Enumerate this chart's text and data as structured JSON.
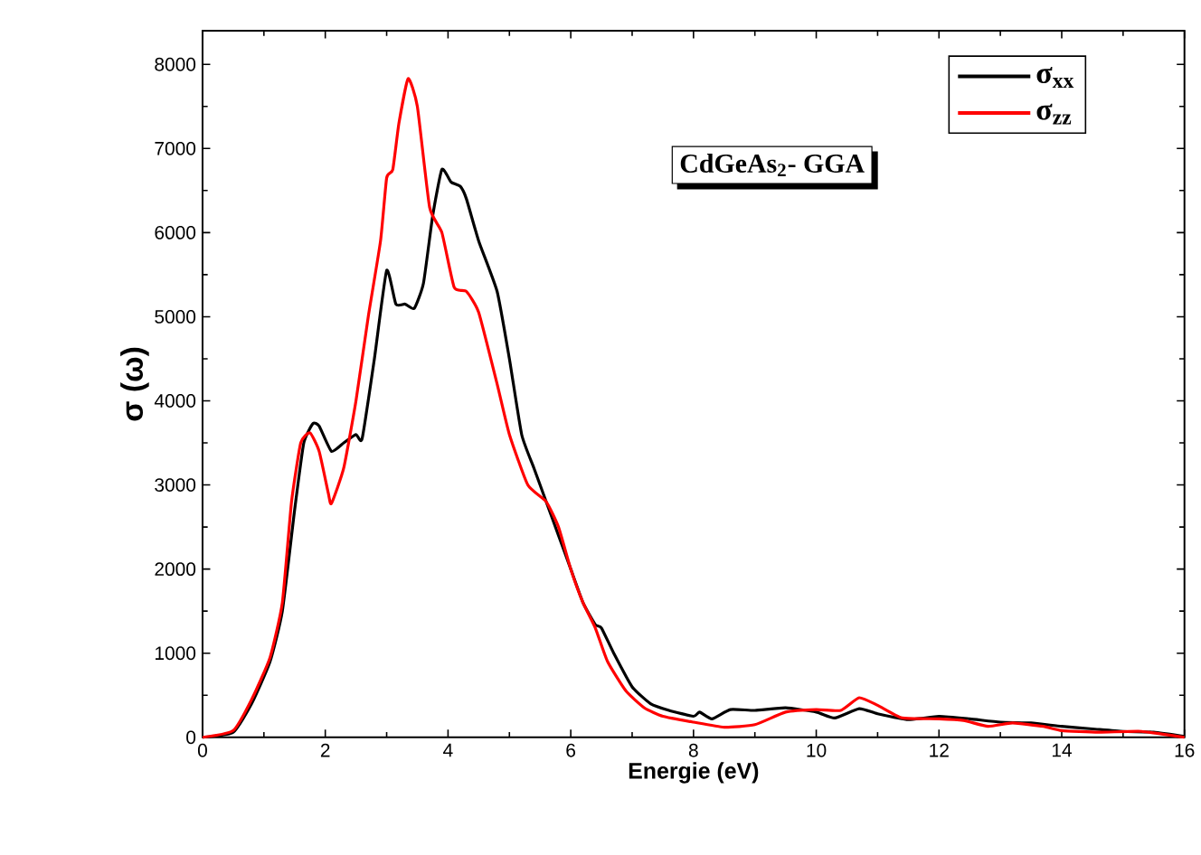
{
  "chart_data": {
    "type": "line",
    "xlabel": "Energie (eV)",
    "ylabel": "σ (ω)",
    "xlim": [
      0,
      16
    ],
    "ylim": [
      0,
      8400
    ],
    "xticks": [
      0,
      2,
      4,
      6,
      8,
      10,
      12,
      14,
      16
    ],
    "yticks": [
      0,
      1000,
      2000,
      3000,
      4000,
      5000,
      6000,
      7000,
      8000
    ],
    "grid": false,
    "legend": "top right",
    "marker": "none",
    "line_style": "solid",
    "annotations": [
      "CdGeAs$_{2}$- GGA"
    ],
    "series": [
      {
        "name": "σ$_{xx}$",
        "color": "#000000",
        "x": [
          0,
          0.5,
          0.8,
          1.1,
          1.3,
          1.5,
          1.65,
          1.8,
          1.9,
          2.1,
          2.3,
          2.5,
          2.6,
          2.8,
          3.0,
          3.15,
          3.3,
          3.45,
          3.6,
          3.75,
          3.9,
          4.05,
          4.2,
          4.3,
          4.5,
          4.8,
          5.0,
          5.2,
          5.4,
          5.6,
          5.8,
          6.0,
          6.2,
          6.4,
          6.5,
          6.7,
          7.0,
          7.3,
          7.6,
          8.0,
          8.1,
          8.3,
          8.6,
          9.0,
          9.5,
          10.0,
          10.3,
          10.7,
          11.0,
          11.5,
          12.0,
          12.5,
          13.0,
          13.5,
          14.0,
          14.5,
          15.0,
          15.5,
          16.0
        ],
        "values": [
          0,
          60,
          400,
          900,
          1500,
          2700,
          3500,
          3730,
          3700,
          3400,
          3500,
          3600,
          3550,
          4500,
          5550,
          5150,
          5150,
          5100,
          5400,
          6200,
          6750,
          6600,
          6550,
          6400,
          5900,
          5300,
          4500,
          3600,
          3200,
          2800,
          2400,
          2000,
          1600,
          1340,
          1300,
          1000,
          600,
          400,
          320,
          250,
          300,
          220,
          330,
          320,
          350,
          300,
          230,
          340,
          280,
          210,
          250,
          220,
          180,
          170,
          130,
          100,
          70,
          60,
          10
        ]
      },
      {
        "name": "σ$_{zz}$",
        "color": "#ff0000",
        "x": [
          0,
          0.5,
          0.8,
          1.1,
          1.3,
          1.45,
          1.6,
          1.75,
          1.9,
          2.05,
          2.1,
          2.3,
          2.5,
          2.7,
          2.9,
          3.0,
          3.1,
          3.2,
          3.35,
          3.5,
          3.7,
          3.9,
          4.1,
          4.3,
          4.5,
          4.8,
          5.0,
          5.3,
          5.6,
          5.8,
          6.0,
          6.2,
          6.4,
          6.6,
          6.9,
          7.2,
          7.5,
          8.0,
          8.5,
          9.0,
          9.5,
          10.0,
          10.4,
          10.7,
          11.0,
          11.4,
          12.0,
          12.4,
          12.8,
          13.2,
          13.7,
          14.0,
          14.6,
          15.3,
          16.0
        ],
        "values": [
          0,
          80,
          450,
          950,
          1600,
          2800,
          3500,
          3620,
          3400,
          2900,
          2780,
          3200,
          4000,
          5000,
          5900,
          6650,
          6750,
          7300,
          7830,
          7500,
          6300,
          6000,
          5350,
          5300,
          5050,
          4200,
          3600,
          3000,
          2800,
          2500,
          2000,
          1600,
          1300,
          900,
          550,
          350,
          250,
          180,
          120,
          150,
          300,
          330,
          320,
          470,
          380,
          230,
          220,
          200,
          130,
          170,
          130,
          80,
          60,
          70,
          0
        ]
      }
    ]
  }
}
